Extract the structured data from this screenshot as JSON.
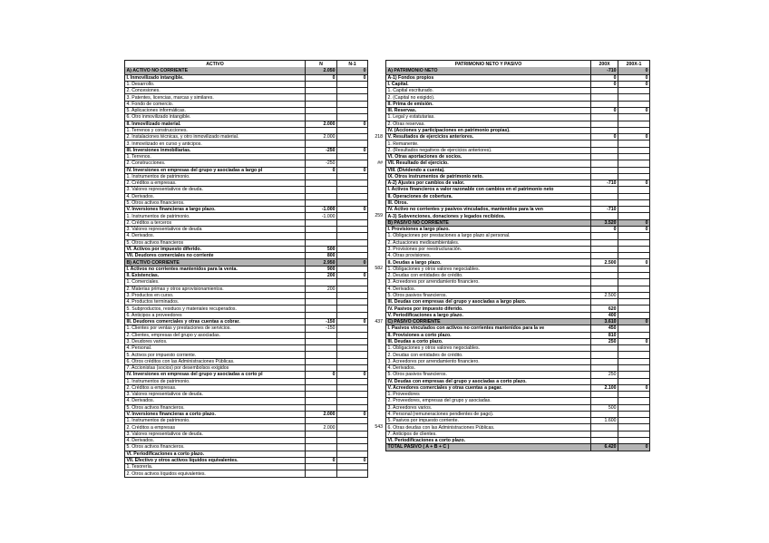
{
  "colors": {
    "section_row_bg": "#b4b4b4",
    "grid_border": "#1a1a1a",
    "text": "#000000",
    "page_bg": "#ffffff"
  },
  "left_table": {
    "header": {
      "label": "ACTIVO",
      "col1": "N",
      "col2": "N-1"
    },
    "rows": [
      {
        "label": "A) ACTIVO NO CORRIENTE",
        "n": "2.050",
        "n1": "0",
        "style": "section"
      },
      {
        "label": "I. Inmovilizado intangible.",
        "n": "0",
        "n1": "0",
        "style": "bold"
      },
      {
        "label": "1. Desarrollo.",
        "n": "",
        "n1": ""
      },
      {
        "label": "2. Concesiones.",
        "n": "",
        "n1": ""
      },
      {
        "label": "3. Patentes, licencias, marcas y similares.",
        "n": "",
        "n1": ""
      },
      {
        "label": "4. Fondo de comercio.",
        "n": "",
        "n1": ""
      },
      {
        "label": "5. Aplicaciones informáticas.",
        "n": "",
        "n1": ""
      },
      {
        "label": "6. Otro inmovilizado intangible.",
        "n": "",
        "n1": ""
      },
      {
        "label": "II. Inmovilizado material.",
        "n": "2.000",
        "n1": "0",
        "style": "bold"
      },
      {
        "label": "1. Terrenos y construcciones.",
        "n": "",
        "n1": ""
      },
      {
        "label": "2. Instalaciones técnicas, y otro inmovilizado material.",
        "n": "2.000",
        "n1": "",
        "ref": "218"
      },
      {
        "label": "3. Inmovilizado en curso y anticipos.",
        "n": "",
        "n1": ""
      },
      {
        "label": "III. Inversiones inmobiliarias.",
        "n": "-250",
        "n1": "0",
        "style": "bold"
      },
      {
        "label": "1. Terrenos.",
        "n": "",
        "n1": ""
      },
      {
        "label": "2. Construcciones.",
        "n": "-250",
        "n1": "",
        "ref": "##"
      },
      {
        "label": "IV. Inversiones en empresas del grupo y asociadas a largo pl",
        "n": "0",
        "n1": "0",
        "style": "bold"
      },
      {
        "label": "1. Instrumentos de patrimonio.",
        "n": "",
        "n1": ""
      },
      {
        "label": "2. Créditos a empresas.",
        "n": "",
        "n1": ""
      },
      {
        "label": "3. Valores representativos de deuda.",
        "n": "",
        "n1": ""
      },
      {
        "label": "4. Derivados.",
        "n": "",
        "n1": ""
      },
      {
        "label": "5. Otros activos financieros.",
        "n": "",
        "n1": ""
      },
      {
        "label": "V. Inversiones financieras a largo plazo.",
        "n": "-1.000",
        "n1": "0",
        "style": "bold"
      },
      {
        "label": "1. Instrumentos de patrimonio.",
        "n": "-1.000",
        "n1": "",
        "ref": "259"
      },
      {
        "label": "2. Créditos a terceros",
        "n": "",
        "n1": ""
      },
      {
        "label": "3. Valores representativos de deuda",
        "n": "",
        "n1": ""
      },
      {
        "label": "4. Derivados.",
        "n": "",
        "n1": ""
      },
      {
        "label": "5. Otros activos financieros",
        "n": "",
        "n1": ""
      },
      {
        "label": "VI. Activos por impuesto diferido.",
        "n": "500",
        "n1": "",
        "style": "bold"
      },
      {
        "label": "VII. Deudores comerciales no corriente",
        "n": "800",
        "n1": "",
        "style": "bold"
      },
      {
        "label": "B) ACTIVO CORRIENTE",
        "n": "2.950",
        "n1": "0",
        "style": "section"
      },
      {
        "label": "I. Activos no corrientes mantenidos para la venta.",
        "n": "900",
        "n1": "",
        "style": "bold",
        "ref": "582"
      },
      {
        "label": "II. Existencias.",
        "n": "200",
        "n1": "0",
        "style": "bold"
      },
      {
        "label": "1. Comerciales.",
        "n": "",
        "n1": ""
      },
      {
        "label": "2. Materias primas y otros aprovisionamientos.",
        "n": "200",
        "n1": ""
      },
      {
        "label": "3. Productos en curso.",
        "n": "",
        "n1": ""
      },
      {
        "label": "4. Productos terminados.",
        "n": "",
        "n1": ""
      },
      {
        "label": "5. Subproductos, residuos y materiales recuperados.",
        "n": "",
        "n1": ""
      },
      {
        "label": "6. Anticipos a proveedores",
        "n": "",
        "n1": ""
      },
      {
        "label": "III. Deudores comerciales y otras cuentas a cobrar.",
        "n": "-150",
        "n1": "0",
        "style": "bold",
        "ref": "437"
      },
      {
        "label": "1. Clientes por ventas y prestaciones de servicios.",
        "n": "-150",
        "n1": ""
      },
      {
        "label": "2. Clientes, empresas del grupo y asociadas.",
        "n": "",
        "n1": ""
      },
      {
        "label": "3. Deudores varios.",
        "n": "",
        "n1": ""
      },
      {
        "label": "4. Personal.",
        "n": "",
        "n1": ""
      },
      {
        "label": "5. Activos por impuesto corriente.",
        "n": "",
        "n1": ""
      },
      {
        "label": "6. Otros créditos con las Administraciones Públicas.",
        "n": "",
        "n1": ""
      },
      {
        "label": "7. Accionistas (socios) por desembolsos exigidos",
        "n": "",
        "n1": ""
      },
      {
        "label": "IV. Inversiones en empresas del grupo y asociadas a corto pl",
        "n": "0",
        "n1": "0",
        "style": "bold"
      },
      {
        "label": "1. Instrumentos de patrimonio.",
        "n": "",
        "n1": ""
      },
      {
        "label": "2. Créditos a empresas.",
        "n": "",
        "n1": ""
      },
      {
        "label": "3. Valores representativos de deuda.",
        "n": "",
        "n1": ""
      },
      {
        "label": "4. Derivados.",
        "n": "",
        "n1": ""
      },
      {
        "label": "5. Otros activos financieros.",
        "n": "",
        "n1": ""
      },
      {
        "label": "V. Inversiones financieras a corto plazo.",
        "n": "2.000",
        "n1": "0",
        "style": "bold"
      },
      {
        "label": "1. Instrumentos de patrimonio.",
        "n": "",
        "n1": ""
      },
      {
        "label": "2. Créditos a empresas",
        "n": "2.000",
        "n1": "",
        "ref": "543"
      },
      {
        "label": "3. Valores representativos de deuda.",
        "n": "",
        "n1": ""
      },
      {
        "label": "4. Derivados.",
        "n": "",
        "n1": ""
      },
      {
        "label": "5. Otros activos financieros.",
        "n": "",
        "n1": ""
      },
      {
        "label": "VI. Periodificaciones a corto plazo.",
        "n": "",
        "n1": "",
        "style": "bold"
      },
      {
        "label": "VII. Efectivo y otros activos líquidos equivalentes.",
        "n": "0",
        "n1": "0",
        "style": "bold"
      },
      {
        "label": "1. Tesorería.",
        "n": "",
        "n1": ""
      },
      {
        "label": "2. Otros activos líquidos equivalentes.",
        "n": "",
        "n1": ""
      }
    ]
  },
  "right_table": {
    "header": {
      "label": "PATRIMONIO NETO Y PASIVO",
      "col1": "200X",
      "col2": "200X-1"
    },
    "rows": [
      {
        "label": "A) PATRIMONIO NETO",
        "n": "-710",
        "n1": "0",
        "style": "section"
      },
      {
        "label": "A-1) Fondos propios",
        "n": "0",
        "n1": "0",
        "style": "bold"
      },
      {
        "label": "I. Capital.",
        "n": "0",
        "n1": "0",
        "style": "bold"
      },
      {
        "label": "1. Capital escriturado.",
        "n": "",
        "n1": ""
      },
      {
        "label": "2. (Capital no exigido).",
        "n": "",
        "n1": ""
      },
      {
        "label": "II. Prima de emisión.",
        "n": "",
        "n1": "",
        "style": "bold"
      },
      {
        "label": "III. Reservas.",
        "n": "0",
        "n1": "0",
        "style": "bold"
      },
      {
        "label": "1. Legal y estatutarias.",
        "n": "",
        "n1": ""
      },
      {
        "label": "2. Otras reservas.",
        "n": "",
        "n1": ""
      },
      {
        "label": "IV. (Acciones y participaciones en patrimonio propias).",
        "n": "",
        "n1": "",
        "style": "bold"
      },
      {
        "label": "V. Resultados de ejercicios anteriores.",
        "n": "0",
        "n1": "0",
        "style": "bold"
      },
      {
        "label": "1. Remanente.",
        "n": "",
        "n1": ""
      },
      {
        "label": "2. (Resultados negativos de ejercicios anteriores).",
        "n": "",
        "n1": ""
      },
      {
        "label": "VI. Otras aportaciones de socios.",
        "n": "",
        "n1": "",
        "style": "bold"
      },
      {
        "label": "VII. Resultado del ejercicio.",
        "n": "",
        "n1": "",
        "style": "bold"
      },
      {
        "label": "VIII. (Dividendo a cuenta).",
        "n": "",
        "n1": "",
        "style": "bold"
      },
      {
        "label": "IX. Otros instrumentos de patrimonio neto.",
        "n": "",
        "n1": "",
        "style": "bold"
      },
      {
        "label": "A-2) Ajustes por cambios de valor.",
        "n": "-710",
        "n1": "0",
        "style": "bold"
      },
      {
        "label": "I. Activos financieros a valor razonable con cambios en el patrimonio neto",
        "n": "",
        "n1": "",
        "style": "bold"
      },
      {
        "label": "II. Operaciones de cobertura.",
        "n": "",
        "n1": "",
        "style": "bold"
      },
      {
        "label": "III. Otros.",
        "n": "",
        "n1": "",
        "style": "bold"
      },
      {
        "label": "IV. Activo no corrientes y pasivos vinculados, mantenidos para la ven",
        "n": "-710",
        "n1": "",
        "style": "bold"
      },
      {
        "label": "A-3) Subvenciones, donaciones y legados recibidos.",
        "n": "",
        "n1": "",
        "style": "bold"
      },
      {
        "label": "B) PASIVO NO CORRIENTE",
        "n": "3.520",
        "n1": "0",
        "style": "section"
      },
      {
        "label": "I. Provisiones a largo plazo.",
        "n": "0",
        "n1": "0",
        "style": "bold"
      },
      {
        "label": "1. Obligaciones por prestaciones a largo plazo al personal.",
        "n": "",
        "n1": ""
      },
      {
        "label": "2. Actuaciones medioambientales.",
        "n": "",
        "n1": ""
      },
      {
        "label": "3. Provisiones por reestructuración.",
        "n": "",
        "n1": ""
      },
      {
        "label": "4. Otras provisiones.",
        "n": "",
        "n1": ""
      },
      {
        "label": "II. Deudas a largo plazo.",
        "n": "2.500",
        "n1": "0",
        "style": "bold"
      },
      {
        "label": "1. Obligaciones y otros valores negociables.",
        "n": "",
        "n1": ""
      },
      {
        "label": "2. Deudas con entidades de crédito.",
        "n": "",
        "n1": ""
      },
      {
        "label": "3. Acreedores por arrendamiento financiero.",
        "n": "",
        "n1": ""
      },
      {
        "label": "4. Derivados.",
        "n": "",
        "n1": ""
      },
      {
        "label": "5. Otros pasivos financieros.",
        "n": "2.500",
        "n1": ""
      },
      {
        "label": "III. Deudas con empresas del grupo y asociadas a largo plazo.",
        "n": "",
        "n1": "",
        "style": "bold"
      },
      {
        "label": "IV. Pasivos por impuesto diferido.",
        "n": "620",
        "n1": "",
        "style": "bold"
      },
      {
        "label": "V. Periodificaciones a largo plazo.",
        "n": "400",
        "n1": "",
        "style": "bold"
      },
      {
        "label": "C) PASIVO CORRIENTE",
        "n": "3.610",
        "n1": "0",
        "style": "section"
      },
      {
        "label": "I. Pasivos vinculados con activos no corrientes mantenidos para la ve",
        "n": "450",
        "n1": "",
        "style": "bold"
      },
      {
        "label": "II. Provisiones a corto plazo.",
        "n": "810",
        "n1": "",
        "style": "bold"
      },
      {
        "label": "III. Deudas a corto plazo.",
        "n": "250",
        "n1": "0",
        "style": "bold"
      },
      {
        "label": "1. Obligaciones y otros valores negociables.",
        "n": "",
        "n1": ""
      },
      {
        "label": "2. Deudas con entidades de crédito.",
        "n": "",
        "n1": ""
      },
      {
        "label": "3. Acreedores por arrendamiento financiero.",
        "n": "",
        "n1": ""
      },
      {
        "label": "4. Derivados.",
        "n": "",
        "n1": ""
      },
      {
        "label": "5. Otros pasivos financieros.",
        "n": "250",
        "n1": ""
      },
      {
        "label": "IV. Deudas con empresas del grupo y asociadas a corto plazo.",
        "n": "",
        "n1": "",
        "style": "bold"
      },
      {
        "label": "V. Acreedores comerciales y otras cuentas a pagar.",
        "n": "2.100",
        "n1": "0",
        "style": "bold"
      },
      {
        "label": "1. Proveedores",
        "n": "",
        "n1": ""
      },
      {
        "label": "2. Proveedores, empresas del grupo y asociadas.",
        "n": "",
        "n1": ""
      },
      {
        "label": "3. Acreedores varios.",
        "n": "500",
        "n1": ""
      },
      {
        "label": "4. Personal (remuneraciones pendientes de pago).",
        "n": "",
        "n1": ""
      },
      {
        "label": "5. Pasivos por impuesto corriente.",
        "n": "1.600",
        "n1": ""
      },
      {
        "label": "6. Otras deudas con las Administraciones Públicas.",
        "n": "",
        "n1": ""
      },
      {
        "label": "7. Anticipos de clientes.",
        "n": "",
        "n1": ""
      },
      {
        "label": "VI. Periodificaciones a corto plazo.",
        "n": "",
        "n1": "",
        "style": "bold"
      },
      {
        "label": "TOTAL PASIVO ( A + B + C )",
        "n": "6.420",
        "n1": "0",
        "style": "total"
      }
    ]
  }
}
